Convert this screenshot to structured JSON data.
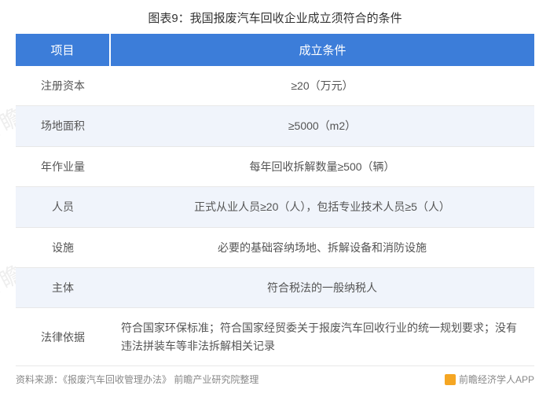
{
  "title": "图表9：我国报废汽车回收企业成立须符合的条件",
  "header": {
    "col1": "项目",
    "col2": "成立条件"
  },
  "rows": [
    {
      "project": "注册资本",
      "condition": "≥20（万元）",
      "align": "center"
    },
    {
      "project": "场地面积",
      "condition": "≥5000（m2）",
      "align": "center"
    },
    {
      "project": "年作业量",
      "condition": "每年回收拆解数量≥500（辆）",
      "align": "center"
    },
    {
      "project": "人员",
      "condition": "正式从业人员≥20（人），包括专业技术人员≥5（人）",
      "align": "center"
    },
    {
      "project": "设施",
      "condition": "必要的基础容纳场地、拆解设备和消防设施",
      "align": "center"
    },
    {
      "project": "主体",
      "condition": "符合税法的一般纳税人",
      "align": "center"
    },
    {
      "project": "法律依据",
      "condition": "符合国家环保标准；符合国家经贸委关于报废汽车回收行业的统一规划要求；没有违法拼装车等非法拆解相关记录",
      "align": "left"
    }
  ],
  "source": "资料来源：《报废汽车回收管理办法》 前瞻产业研究院整理",
  "brand": "前瞻经济学人APP",
  "watermark": "前瞻产业研究院",
  "colors": {
    "header_bg": "#3c7dd9",
    "header_text": "#ffffff",
    "row_even_bg": "#f0f4fb",
    "row_odd_bg": "#ffffff",
    "text_color": "#555555",
    "source_color": "#888888",
    "brand_icon": "#f5a623"
  }
}
